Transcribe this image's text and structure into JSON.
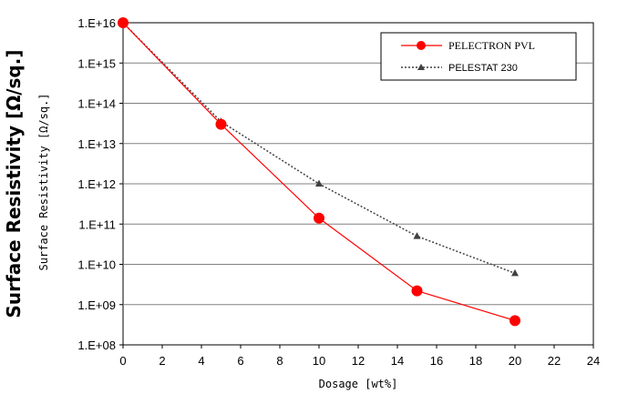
{
  "chart_data": {
    "type": "line",
    "y_scale": "log",
    "xlabel": "Dosage [wt%]",
    "ylabel": "Surface Resistivity [Ω/sq.]",
    "ylabel_secondary": "Surface Resistivity [Ω/sq.]",
    "xlim": [
      0,
      24
    ],
    "ylim": [
      100000000.0,
      1e+16
    ],
    "x_ticks": [
      "0",
      "2",
      "4",
      "6",
      "8",
      "10",
      "12",
      "14",
      "16",
      "18",
      "20",
      "22",
      "24"
    ],
    "y_ticks": [
      "1.E+08",
      "1.E+09",
      "1.E+10",
      "1.E+11",
      "1.E+12",
      "1.E+13",
      "1.E+14",
      "1.E+15",
      "1.E+16"
    ],
    "grid": "horizontal",
    "legend_position": "top-right",
    "series": [
      {
        "name": "PELECTRON PVL",
        "color": "#ff0000",
        "marker": "circle",
        "line_style": "solid",
        "x": [
          0,
          5,
          10,
          15,
          20
        ],
        "y": [
          1e+16,
          30000000000000.0,
          140000000000.0,
          2200000000.0,
          400000000.0
        ]
      },
      {
        "name": "PELESTAT 230",
        "color": "#404040",
        "marker": "triangle",
        "line_style": "dotted",
        "x": [
          0,
          5,
          10,
          15,
          20
        ],
        "y": [
          1e+16,
          35000000000000.0,
          1000000000000.0,
          50000000000.0,
          6000000000.0
        ]
      }
    ]
  }
}
